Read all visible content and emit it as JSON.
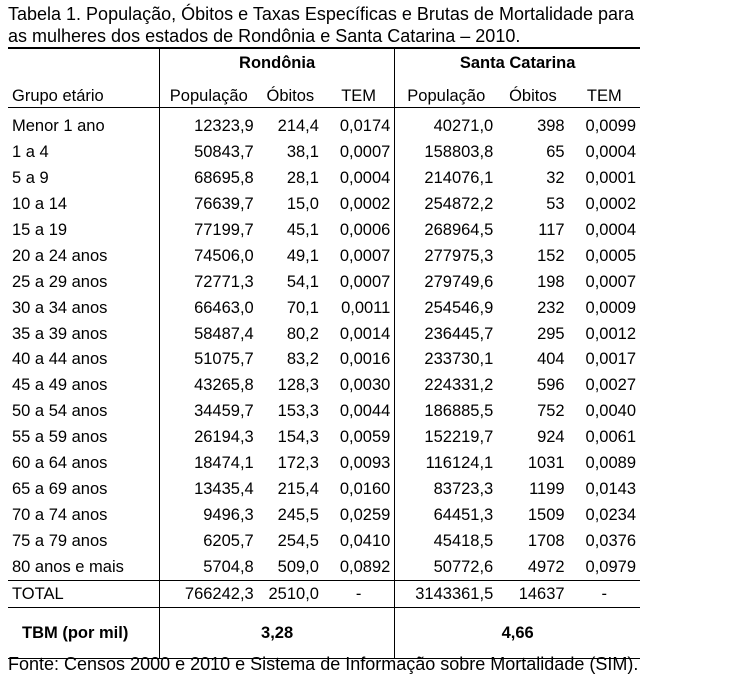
{
  "caption": {
    "line1": "Tabela 1. População, Óbitos e Taxas Específicas e Brutas de Mortalidade para",
    "line2": "as mulheres dos estados de Rondônia e Santa Catarina – 2010."
  },
  "groups": {
    "left": "Rondônia",
    "right": "Santa Catarina"
  },
  "columns": {
    "age": "Grupo etário",
    "pop": "População",
    "deaths": "Óbitos",
    "tem": "TEM"
  },
  "rows": [
    [
      "Menor 1 ano",
      "12323,9",
      "214,4",
      "0,0174",
      "40271,0",
      "398",
      "0,0099"
    ],
    [
      "1 a 4",
      "50843,7",
      "38,1",
      "0,0007",
      "158803,8",
      "65",
      "0,0004"
    ],
    [
      "5 a 9",
      "68695,8",
      "28,1",
      "0,0004",
      "214076,1",
      "32",
      "0,0001"
    ],
    [
      "10 a 14",
      "76639,7",
      "15,0",
      "0,0002",
      "254872,2",
      "53",
      "0,0002"
    ],
    [
      "15 a 19",
      "77199,7",
      "45,1",
      "0,0006",
      "268964,5",
      "117",
      "0,0004"
    ],
    [
      "20 a 24 anos",
      "74506,0",
      "49,1",
      "0,0007",
      "277975,3",
      "152",
      "0,0005"
    ],
    [
      "25 a 29 anos",
      "72771,3",
      "54,1",
      "0,0007",
      "279749,6",
      "198",
      "0,0007"
    ],
    [
      "30 a 34 anos",
      "66463,0",
      "70,1",
      "0,0011",
      "254546,9",
      "232",
      "0,0009"
    ],
    [
      "35 a 39 anos",
      "58487,4",
      "80,2",
      "0,0014",
      "236445,7",
      "295",
      "0,0012"
    ],
    [
      "40 a 44 anos",
      "51075,7",
      "83,2",
      "0,0016",
      "233730,1",
      "404",
      "0,0017"
    ],
    [
      "45 a 49 anos",
      "43265,8",
      "128,3",
      "0,0030",
      "224331,2",
      "596",
      "0,0027"
    ],
    [
      "50 a 54 anos",
      "34459,7",
      "153,3",
      "0,0044",
      "186885,5",
      "752",
      "0,0040"
    ],
    [
      "55 a 59 anos",
      "26194,3",
      "154,3",
      "0,0059",
      "152219,7",
      "924",
      "0,0061"
    ],
    [
      "60 a 64 anos",
      "18474,1",
      "172,3",
      "0,0093",
      "116124,1",
      "1031",
      "0,0089"
    ],
    [
      "65 a 69 anos",
      "13435,4",
      "215,4",
      "0,0160",
      "83723,3",
      "1199",
      "0,0143"
    ],
    [
      "70 a 74 anos",
      "9496,3",
      "245,5",
      "0,0259",
      "64451,3",
      "1509",
      "0,0234"
    ],
    [
      "75 a 79 anos",
      "6205,7",
      "254,5",
      "0,0410",
      "45418,5",
      "1708",
      "0,0376"
    ],
    [
      "80 anos e mais",
      "5704,8",
      "509,0",
      "0,0892",
      "50772,6",
      "4972",
      "0,0979"
    ]
  ],
  "total": {
    "label": "TOTAL",
    "ro_pop": "766242,3",
    "ro_deaths": "2510,0",
    "ro_tem": "-",
    "sc_pop": "3143361,5",
    "sc_deaths": "14637",
    "sc_tem": "-"
  },
  "tbm": {
    "label": "TBM (por mil)",
    "ro": "3,28",
    "sc": "4,66"
  },
  "source": "Fonte: Censos 2000 e 2010 e Sistema de Informação sobre Mortalidade (SIM)."
}
